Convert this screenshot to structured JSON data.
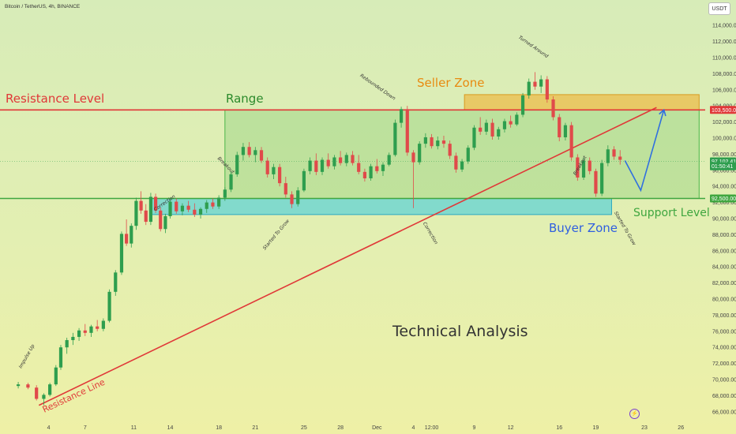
{
  "header": {
    "symbol": "Bitcoin / TetherUS, 4h, BINANCE",
    "currency": "USDT"
  },
  "colors": {
    "resistance": "#e03838",
    "support": "#3fa63f",
    "seller_zone": "#f0b030",
    "buyer_zone": "#35c8e0",
    "range": "#49b749",
    "up": "#2e9e4e",
    "down": "#e04a4a",
    "projection": "#2f6fe0"
  },
  "labels": {
    "resistance_level": "Resistance Level",
    "range": "Range",
    "seller_zone": "Seller Zone",
    "buyer_zone": "Buyer Zone",
    "support_level": "Support Level",
    "resistance_line": "Resistance Line",
    "technical_analysis": "Technical Analysis"
  },
  "alert_icon": "lightning-icon",
  "chart_data": {
    "type": "candlestick",
    "ylim": [
      65000,
      115000
    ],
    "y_ticks": [
      66000,
      68000,
      70000,
      72000,
      74000,
      76000,
      78000,
      80000,
      82000,
      84000,
      86000,
      88000,
      90000,
      92000,
      94000,
      96000,
      98000,
      100000,
      102000,
      104000,
      106000,
      108000,
      110000,
      112000,
      114000
    ],
    "y_tick_labels": [
      "66,000.00",
      "68,000.00",
      "70,000.00",
      "72,000.00",
      "74,000.00",
      "76,000.00",
      "78,000.00",
      "80,000.00",
      "82,000.00",
      "84,000.00",
      "86,000.00",
      "88,000.00",
      "90,000.00",
      "92,000.00",
      "94,000.00",
      "96,000.00",
      "98,000.00",
      "100,000.00",
      "102,000.00",
      "104,000.00",
      "106,000.00",
      "108,000.00",
      "110,000.00",
      "112,000.00",
      "114,000.00"
    ],
    "x_ticks": [
      {
        "label": "4",
        "day": 4
      },
      {
        "label": "7",
        "day": 7
      },
      {
        "label": "11",
        "day": 11
      },
      {
        "label": "14",
        "day": 14
      },
      {
        "label": "18",
        "day": 18
      },
      {
        "label": "21",
        "day": 21
      },
      {
        "label": "25",
        "day": 25
      },
      {
        "label": "28",
        "day": 28
      },
      {
        "label": "Dec",
        "day": 31
      },
      {
        "label": "4",
        "day": 34
      },
      {
        "label": "12:00",
        "day": 35.5
      },
      {
        "label": "9",
        "day": 39
      },
      {
        "label": "12",
        "day": 42
      },
      {
        "label": "16",
        "day": 46
      },
      {
        "label": "19",
        "day": 49
      },
      {
        "label": "23",
        "day": 53
      },
      {
        "label": "26",
        "day": 56
      }
    ],
    "price_markers": [
      {
        "value": 103500,
        "text": "103,500.00",
        "color": "#e03838"
      },
      {
        "value": 97102.41,
        "text": "97,102.41",
        "color": "#2e9e4e"
      },
      {
        "value": 96500,
        "text": "01:50:41",
        "color": "#2e9e4e"
      },
      {
        "value": 92500,
        "text": "92,500.00",
        "color": "#3fa63f"
      }
    ],
    "resistance_level": 103500,
    "support_level": 92500,
    "seller_zone": {
      "from_day": 38.2,
      "to_day": 57.5,
      "low": 103500,
      "high": 105400
    },
    "buyer_zone": {
      "from_day": 12.5,
      "to_day": 50.3,
      "low": 90500,
      "high": 92500
    },
    "range_box": {
      "from_day": 18.5,
      "to_day": 57.5,
      "low": 92500,
      "high": 103500
    },
    "resistance_line": {
      "from": {
        "day": 3.2,
        "value": 66800
      },
      "to": {
        "day": 54,
        "value": 103800
      }
    },
    "projection": [
      {
        "day": 51.4,
        "value": 97200
      },
      {
        "day": 52.7,
        "value": 93500
      },
      {
        "day": 54.6,
        "value": 103500
      }
    ],
    "candles": [
      [
        1.5,
        69200,
        69700,
        68900,
        69400
      ],
      [
        2.3,
        69400,
        69600,
        68800,
        69000
      ],
      [
        3.0,
        69000,
        69300,
        67400,
        67600
      ],
      [
        3.6,
        67600,
        68300,
        66800,
        68100
      ],
      [
        4.1,
        68100,
        69600,
        67900,
        69400
      ],
      [
        4.6,
        69400,
        71800,
        69200,
        71500
      ],
      [
        5.0,
        71500,
        74300,
        71200,
        74000
      ],
      [
        5.5,
        74000,
        75200,
        73200,
        74900
      ],
      [
        6.0,
        74900,
        75800,
        74300,
        75300
      ],
      [
        6.5,
        75300,
        76400,
        74800,
        76100
      ],
      [
        7.0,
        76100,
        76900,
        75400,
        75800
      ],
      [
        7.5,
        75800,
        76800,
        75300,
        76600
      ],
      [
        8.0,
        76600,
        77400,
        76000,
        76300
      ],
      [
        8.5,
        76300,
        77600,
        76000,
        77300
      ],
      [
        9.0,
        77300,
        81200,
        77100,
        80900
      ],
      [
        9.5,
        80900,
        83600,
        80400,
        83300
      ],
      [
        10.0,
        83300,
        88400,
        83000,
        88100
      ],
      [
        10.4,
        88100,
        89900,
        86600,
        86900
      ],
      [
        10.8,
        86900,
        89400,
        86400,
        89100
      ],
      [
        11.2,
        89100,
        92600,
        88600,
        92200
      ],
      [
        11.6,
        92200,
        93400,
        90600,
        91000
      ],
      [
        12.0,
        91000,
        91800,
        89200,
        89600
      ],
      [
        12.4,
        89600,
        93200,
        89200,
        92700
      ],
      [
        12.8,
        92700,
        93100,
        90700,
        91000
      ],
      [
        13.2,
        91000,
        91400,
        88400,
        88700
      ],
      [
        13.6,
        88700,
        90600,
        88200,
        90300
      ],
      [
        14.0,
        90300,
        92400,
        90000,
        92100
      ],
      [
        14.5,
        92100,
        92500,
        90600,
        90900
      ],
      [
        15.0,
        90900,
        91900,
        90400,
        91600
      ],
      [
        15.5,
        91600,
        92200,
        90800,
        91100
      ],
      [
        16.0,
        91100,
        91900,
        90200,
        90500
      ],
      [
        16.5,
        90500,
        91400,
        90000,
        91200
      ],
      [
        17.0,
        91200,
        92300,
        90700,
        92000
      ],
      [
        17.5,
        92000,
        92500,
        91200,
        91500
      ],
      [
        18.0,
        91500,
        92900,
        91200,
        92600
      ],
      [
        18.5,
        92600,
        93900,
        92200,
        93600
      ],
      [
        19.0,
        93600,
        95800,
        93300,
        95500
      ],
      [
        19.5,
        95500,
        98300,
        95200,
        97900
      ],
      [
        20.0,
        97900,
        99400,
        97200,
        98900
      ],
      [
        20.5,
        98900,
        99500,
        97600,
        97900
      ],
      [
        21.0,
        97900,
        98900,
        97000,
        98500
      ],
      [
        21.5,
        98500,
        98900,
        96900,
        97200
      ],
      [
        22.0,
        97200,
        97600,
        95100,
        95500
      ],
      [
        22.5,
        95500,
        96800,
        94900,
        96400
      ],
      [
        23.0,
        96400,
        96800,
        94000,
        94400
      ],
      [
        23.5,
        94400,
        95200,
        92600,
        93000
      ],
      [
        24.0,
        93000,
        93400,
        91300,
        91800
      ],
      [
        24.5,
        91800,
        93900,
        91500,
        93500
      ],
      [
        25.0,
        93500,
        96200,
        93300,
        95900
      ],
      [
        25.5,
        95900,
        97600,
        95500,
        97200
      ],
      [
        26.0,
        97200,
        98100,
        95400,
        95800
      ],
      [
        26.5,
        95800,
        97600,
        95400,
        97300
      ],
      [
        27.0,
        97300,
        98100,
        96200,
        96500
      ],
      [
        27.5,
        96500,
        97900,
        96100,
        97600
      ],
      [
        28.0,
        97600,
        98400,
        96600,
        96900
      ],
      [
        28.5,
        96900,
        98200,
        96500,
        97900
      ],
      [
        29.0,
        97900,
        98400,
        96600,
        96900
      ],
      [
        29.5,
        96900,
        97900,
        95500,
        95800
      ],
      [
        30.0,
        95800,
        96200,
        94600,
        95000
      ],
      [
        30.5,
        95000,
        96800,
        94700,
        96500
      ],
      [
        31.0,
        96500,
        97400,
        95600,
        95900
      ],
      [
        31.5,
        95900,
        97000,
        95300,
        96700
      ],
      [
        32.0,
        96700,
        98200,
        96500,
        97900
      ],
      [
        32.5,
        97900,
        102300,
        97700,
        101900
      ],
      [
        33.0,
        101900,
        103900,
        101300,
        103600
      ],
      [
        33.5,
        103600,
        104000,
        97800,
        98200
      ],
      [
        34.0,
        98200,
        98500,
        91300,
        97000
      ],
      [
        34.5,
        97000,
        99600,
        96700,
        99300
      ],
      [
        35.0,
        99300,
        100600,
        98800,
        100100
      ],
      [
        35.5,
        100100,
        100500,
        98700,
        99000
      ],
      [
        36.0,
        99000,
        100200,
        98600,
        99700
      ],
      [
        36.5,
        99700,
        100300,
        98800,
        99300
      ],
      [
        37.0,
        99300,
        99700,
        97400,
        97800
      ],
      [
        37.5,
        97800,
        98200,
        95700,
        96100
      ],
      [
        38.0,
        96100,
        97400,
        95800,
        97100
      ],
      [
        38.5,
        97100,
        99100,
        96800,
        98800
      ],
      [
        39.0,
        98800,
        101600,
        98500,
        101300
      ],
      [
        39.5,
        101300,
        102600,
        100400,
        100800
      ],
      [
        40.0,
        100800,
        102300,
        100400,
        101900
      ],
      [
        40.5,
        101900,
        102400,
        99800,
        100200
      ],
      [
        41.0,
        100200,
        101400,
        99800,
        101100
      ],
      [
        41.5,
        101100,
        102400,
        100700,
        102100
      ],
      [
        42.0,
        102100,
        102800,
        101300,
        101700
      ],
      [
        42.5,
        101700,
        103200,
        101500,
        102900
      ],
      [
        43.0,
        102900,
        105600,
        102600,
        105300
      ],
      [
        43.5,
        105300,
        107400,
        104900,
        107000
      ],
      [
        44.0,
        107000,
        108200,
        106000,
        106400
      ],
      [
        44.5,
        106400,
        107800,
        105600,
        107300
      ],
      [
        45.0,
        107300,
        107700,
        104400,
        104800
      ],
      [
        45.5,
        104800,
        105200,
        102200,
        102600
      ],
      [
        46.0,
        102600,
        103000,
        99600,
        100100
      ],
      [
        46.5,
        100100,
        101900,
        99700,
        101600
      ],
      [
        47.0,
        101600,
        102000,
        97200,
        97600
      ],
      [
        47.5,
        97600,
        98000,
        94700,
        95100
      ],
      [
        48.0,
        95100,
        97600,
        94800,
        97200
      ],
      [
        48.5,
        97200,
        97600,
        95500,
        95900
      ],
      [
        49.0,
        95900,
        96200,
        92700,
        93100
      ],
      [
        49.5,
        93100,
        97300,
        92800,
        96900
      ],
      [
        50.0,
        96900,
        99100,
        96500,
        98600
      ],
      [
        50.5,
        98600,
        99000,
        97300,
        97700
      ],
      [
        51.0,
        97700,
        98500,
        96700,
        97300
      ]
    ],
    "annotations": [
      {
        "text": "Impulse Up",
        "day": 2.3,
        "value": 72800,
        "angle": -60
      },
      {
        "text": "Correction",
        "day": 13.6,
        "value": 91800,
        "angle": -35
      },
      {
        "text": "Breakout",
        "day": 18.5,
        "value": 96500,
        "angle": 45
      },
      {
        "text": "Started To Grow",
        "day": 22.8,
        "value": 87900,
        "angle": -50
      },
      {
        "text": "Rebounded Down",
        "day": 31.0,
        "value": 106200,
        "angle": 35
      },
      {
        "text": "Correction",
        "day": 35.3,
        "value": 88100,
        "angle": 60
      },
      {
        "text": "Turned Around",
        "day": 43.8,
        "value": 111200,
        "angle": 35
      },
      {
        "text": "Breakout",
        "day": 47.8,
        "value": 96500,
        "angle": -60
      },
      {
        "text": "Started To Grow",
        "day": 51.3,
        "value": 88700,
        "angle": 60
      }
    ]
  }
}
